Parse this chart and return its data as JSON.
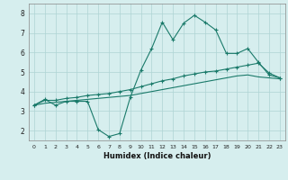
{
  "title": "",
  "xlabel": "Humidex (Indice chaleur)",
  "bg_color": "#d6eeee",
  "line_color": "#1a7a6a",
  "grid_color": "#aed4d4",
  "x_ticks": [
    0,
    1,
    2,
    3,
    4,
    5,
    6,
    7,
    8,
    9,
    10,
    11,
    12,
    13,
    14,
    15,
    16,
    17,
    18,
    19,
    20,
    21,
    22,
    23
  ],
  "y_ticks": [
    2,
    3,
    4,
    5,
    6,
    7,
    8
  ],
  "ylim": [
    1.5,
    8.5
  ],
  "xlim": [
    -0.5,
    23.5
  ],
  "series1_x": [
    0,
    1,
    2,
    3,
    4,
    5,
    6,
    7,
    8,
    9,
    10,
    11,
    12,
    13,
    14,
    15,
    16,
    17,
    18,
    19,
    20,
    21,
    22,
    23
  ],
  "series1_y": [
    3.3,
    3.6,
    3.3,
    3.5,
    3.5,
    3.5,
    2.05,
    1.7,
    1.85,
    3.7,
    5.1,
    6.2,
    7.55,
    6.65,
    7.5,
    7.9,
    7.55,
    7.15,
    5.95,
    5.95,
    6.2,
    5.5,
    4.85,
    4.7
  ],
  "series2_x": [
    0,
    1,
    2,
    3,
    4,
    5,
    6,
    7,
    8,
    9,
    10,
    11,
    12,
    13,
    14,
    15,
    16,
    17,
    18,
    19,
    20,
    21,
    22,
    23
  ],
  "series2_y": [
    3.3,
    3.55,
    3.55,
    3.65,
    3.7,
    3.8,
    3.85,
    3.9,
    4.0,
    4.1,
    4.25,
    4.4,
    4.55,
    4.65,
    4.8,
    4.9,
    5.0,
    5.05,
    5.15,
    5.25,
    5.35,
    5.45,
    4.95,
    4.7
  ],
  "series3_x": [
    0,
    1,
    2,
    3,
    4,
    5,
    6,
    7,
    8,
    9,
    10,
    11,
    12,
    13,
    14,
    15,
    16,
    17,
    18,
    19,
    20,
    21,
    22,
    23
  ],
  "series3_y": [
    3.3,
    3.4,
    3.45,
    3.5,
    3.55,
    3.6,
    3.65,
    3.7,
    3.75,
    3.8,
    3.9,
    4.0,
    4.1,
    4.2,
    4.3,
    4.4,
    4.5,
    4.6,
    4.7,
    4.8,
    4.85,
    4.75,
    4.7,
    4.65
  ]
}
